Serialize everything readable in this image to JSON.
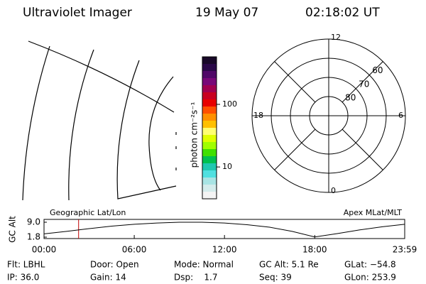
{
  "header": {
    "title": "Ultraviolet Imager",
    "date": "19 May 07",
    "time": "02:18:02 UT"
  },
  "chart_data": [
    {
      "type": "colorbar",
      "label": "photon cm⁻²s⁻¹",
      "log_scale": true,
      "ylim": [
        3.1,
        575
      ],
      "yticks": [
        10,
        100
      ],
      "colors": [
        "#180828",
        "#2a0848",
        "#500868",
        "#780878",
        "#a00050",
        "#c80020",
        "#e80000",
        "#ff5000",
        "#ff9000",
        "#ffc000",
        "#ffff70",
        "#e0ff00",
        "#a0ff00",
        "#40e000",
        "#00c050",
        "#20c8b0",
        "#50e0e0",
        "#a8e4e4",
        "#d4ecec",
        "#f4f4f4"
      ]
    },
    {
      "type": "polar",
      "rlim": [
        50,
        90
      ],
      "rticks": [
        60,
        70,
        80
      ],
      "angle_labels": {
        "top": "12",
        "left": "18",
        "right": "6",
        "bottom": "0"
      }
    },
    {
      "type": "line",
      "ylabel": "GC Alt",
      "annotations": [
        "Geographic Lat/Lon",
        "Apex MLat/MLT"
      ],
      "x": [
        0,
        1.5,
        3,
        4.5,
        6,
        7.5,
        9,
        10.5,
        12,
        13.5,
        15,
        16.5,
        18,
        19.5,
        21,
        22.5,
        23.983
      ],
      "series": [
        {
          "color": "#000000",
          "values": [
            3.4,
            4.6,
            5.9,
            7.1,
            8.0,
            8.6,
            9.0,
            9.0,
            8.6,
            7.8,
            6.6,
            4.6,
            1.9,
            3.5,
            5.3,
            6.8,
            8.0
          ]
        }
      ],
      "xlim": [
        0,
        23.983
      ],
      "xticks": [
        {
          "value": 0,
          "label": "00:00"
        },
        {
          "value": 6,
          "label": "06:00"
        },
        {
          "value": 12,
          "label": "12:00"
        },
        {
          "value": 18,
          "label": "18:00"
        },
        {
          "value": 23.983,
          "label": "23:59"
        }
      ],
      "ylim": [
        1.8,
        9.0
      ],
      "yticks": [
        {
          "value": 9.0,
          "label": "9.0"
        },
        1.8
      ],
      "marker_x": 2.3,
      "marker_color": "#c00000"
    }
  ],
  "footer": {
    "rows": [
      [
        "Flt: LBHL",
        "Door: Open",
        "Mode: Normal",
        "GC Alt: 5.1 Re",
        "GLat: −54.8"
      ],
      [
        "IP: 36.0",
        "Gain: 14",
        "Dsp:    1.7",
        "Seq: 39",
        "GLon: 253.9"
      ]
    ]
  }
}
